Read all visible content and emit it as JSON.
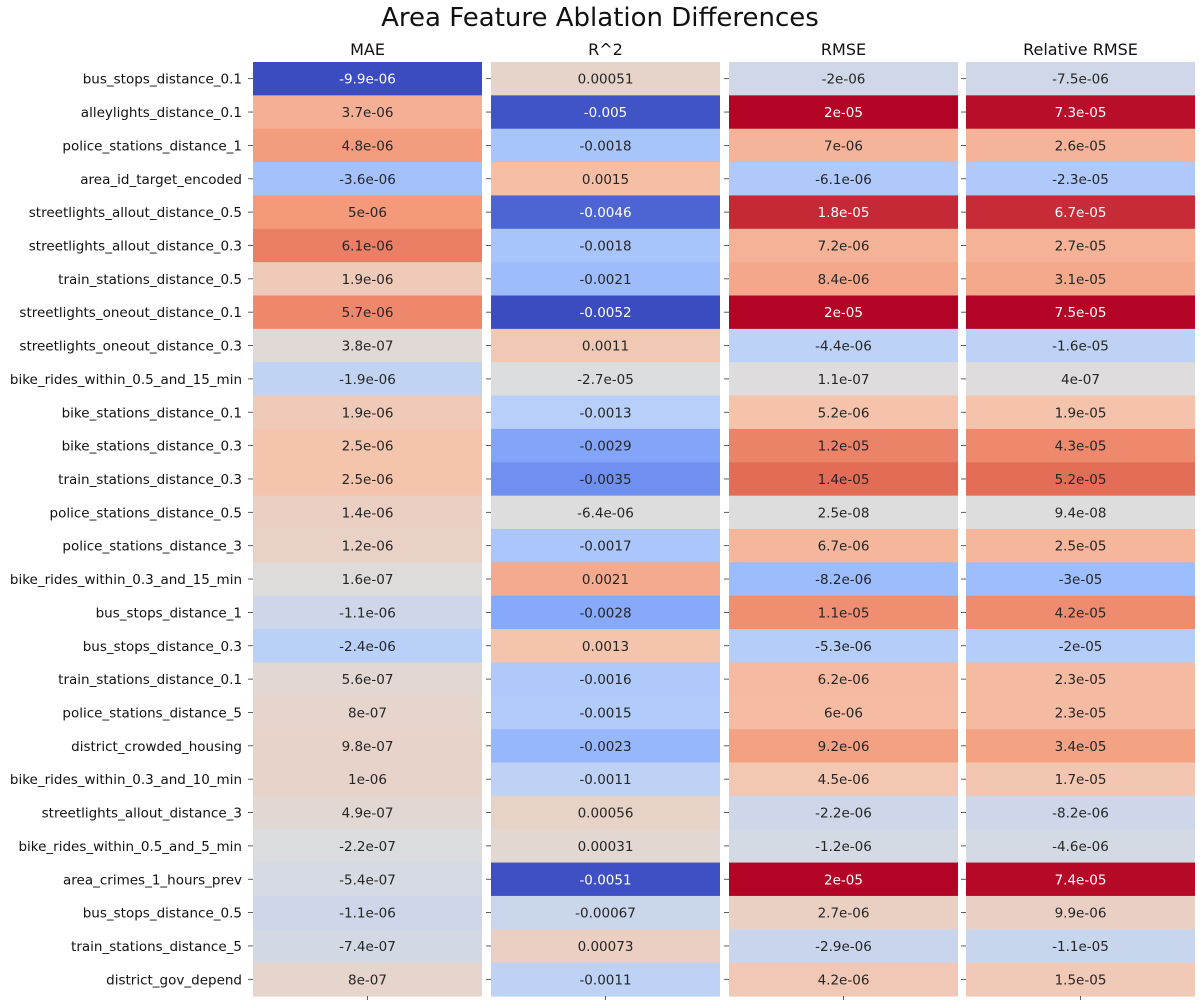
{
  "chart_data": {
    "type": "heatmap",
    "title": "Area Feature Ablation Differences",
    "colormap": "coolwarm",
    "panels": [
      {
        "name": "MAE",
        "vmin": -9.9e-06,
        "vmax": 9.9e-06,
        "labels": [
          "-9.9e-06",
          "3.7e-06",
          "4.8e-06",
          "-3.6e-06",
          "5e-06",
          "6.1e-06",
          "1.9e-06",
          "5.7e-06",
          "3.8e-07",
          "-1.9e-06",
          "1.9e-06",
          "2.5e-06",
          "2.5e-06",
          "1.4e-06",
          "1.2e-06",
          "1.6e-07",
          "-1.1e-06",
          "-2.4e-06",
          "5.6e-07",
          "8e-07",
          "9.8e-07",
          "1e-06",
          "4.9e-07",
          "-2.2e-07",
          "-5.4e-07",
          "-1.1e-06",
          "-7.4e-07",
          "8e-07"
        ],
        "values": [
          -9.9e-06,
          3.7e-06,
          4.8e-06,
          -3.6e-06,
          5e-06,
          6.1e-06,
          1.9e-06,
          5.7e-06,
          3.8e-07,
          -1.9e-06,
          1.9e-06,
          2.5e-06,
          2.5e-06,
          1.4e-06,
          1.2e-06,
          1.6e-07,
          -1.1e-06,
          -2.4e-06,
          5.6e-07,
          8e-07,
          9.8e-07,
          1e-06,
          4.9e-07,
          -2.2e-07,
          -5.4e-07,
          -1.1e-06,
          -7.4e-07,
          8e-07
        ]
      },
      {
        "name": "R^2",
        "vmin": -0.0052,
        "vmax": 0.0052,
        "labels": [
          "0.00051",
          "-0.005",
          "-0.0018",
          "0.0015",
          "-0.0046",
          "-0.0018",
          "-0.0021",
          "-0.0052",
          "0.0011",
          "-2.7e-05",
          "-0.0013",
          "-0.0029",
          "-0.0035",
          "-6.4e-06",
          "-0.0017",
          "0.0021",
          "-0.0028",
          "0.0013",
          "-0.0016",
          "-0.0015",
          "-0.0023",
          "-0.0011",
          "0.00056",
          "0.00031",
          "-0.0051",
          "-0.00067",
          "0.00073",
          "-0.0011"
        ],
        "values": [
          0.00051,
          -0.005,
          -0.0018,
          0.0015,
          -0.0046,
          -0.0018,
          -0.0021,
          -0.0052,
          0.0011,
          -2.7e-05,
          -0.0013,
          -0.0029,
          -0.0035,
          -6.4e-06,
          -0.0017,
          0.0021,
          -0.0028,
          0.0013,
          -0.0016,
          -0.0015,
          -0.0023,
          -0.0011,
          0.00056,
          0.00031,
          -0.0051,
          -0.00067,
          0.00073,
          -0.0011
        ]
      },
      {
        "name": "RMSE",
        "vmin": -2e-05,
        "vmax": 2e-05,
        "labels": [
          "-2e-06",
          "2e-05",
          "7e-06",
          "-6.1e-06",
          "1.8e-05",
          "7.2e-06",
          "8.4e-06",
          "2e-05",
          "-4.4e-06",
          "1.1e-07",
          "5.2e-06",
          "1.2e-05",
          "1.4e-05",
          "2.5e-08",
          "6.7e-06",
          "-8.2e-06",
          "1.1e-05",
          "-5.3e-06",
          "6.2e-06",
          "6e-06",
          "9.2e-06",
          "4.5e-06",
          "-2.2e-06",
          "-1.2e-06",
          "2e-05",
          "2.7e-06",
          "-2.9e-06",
          "4.2e-06"
        ],
        "values": [
          -2e-06,
          2e-05,
          7e-06,
          -6.1e-06,
          1.8e-05,
          7.2e-06,
          8.4e-06,
          2e-05,
          -4.4e-06,
          1.1e-07,
          5.2e-06,
          1.2e-05,
          1.4e-05,
          2.5e-08,
          6.7e-06,
          -8.2e-06,
          1.1e-05,
          -5.3e-06,
          6.2e-06,
          6e-06,
          9.2e-06,
          4.5e-06,
          -2.2e-06,
          -1.2e-06,
          2e-05,
          2.7e-06,
          -2.9e-06,
          4.2e-06
        ]
      },
      {
        "name": "Relative RMSE",
        "vmin": -7.5e-05,
        "vmax": 7.5e-05,
        "labels": [
          "-7.5e-06",
          "7.3e-05",
          "2.6e-05",
          "-2.3e-05",
          "6.7e-05",
          "2.7e-05",
          "3.1e-05",
          "7.5e-05",
          "-1.6e-05",
          "4e-07",
          "1.9e-05",
          "4.3e-05",
          "5.2e-05",
          "9.4e-08",
          "2.5e-05",
          "-3e-05",
          "4.2e-05",
          "-2e-05",
          "2.3e-05",
          "2.3e-05",
          "3.4e-05",
          "1.7e-05",
          "-8.2e-06",
          "-4.6e-06",
          "7.4e-05",
          "9.9e-06",
          "-1.1e-05",
          "1.5e-05"
        ],
        "values": [
          -7.5e-06,
          7.3e-05,
          2.6e-05,
          -2.3e-05,
          6.7e-05,
          2.7e-05,
          3.1e-05,
          7.5e-05,
          -1.6e-05,
          4e-07,
          1.9e-05,
          4.3e-05,
          5.2e-05,
          9.4e-08,
          2.5e-05,
          -3e-05,
          4.2e-05,
          -2e-05,
          2.3e-05,
          2.3e-05,
          3.4e-05,
          1.7e-05,
          -8.2e-06,
          -4.6e-06,
          7.4e-05,
          9.9e-06,
          -1.1e-05,
          1.5e-05
        ]
      }
    ],
    "rows": [
      "bus_stops_distance_0.1",
      "alleylights_distance_0.1",
      "police_stations_distance_1",
      "area_id_target_encoded",
      "streetlights_allout_distance_0.5",
      "streetlights_allout_distance_0.3",
      "train_stations_distance_0.5",
      "streetlights_oneout_distance_0.1",
      "streetlights_oneout_distance_0.3",
      "bike_rides_within_0.5_and_15_min",
      "bike_stations_distance_0.1",
      "bike_stations_distance_0.3",
      "train_stations_distance_0.3",
      "police_stations_distance_0.5",
      "police_stations_distance_3",
      "bike_rides_within_0.3_and_15_min",
      "bus_stops_distance_1",
      "bus_stops_distance_0.3",
      "train_stations_distance_0.1",
      "police_stations_distance_5",
      "district_crowded_housing",
      "bike_rides_within_0.3_and_10_min",
      "streetlights_allout_distance_3",
      "bike_rides_within_0.5_and_5_min",
      "area_crimes_1_hours_prev",
      "bus_stops_distance_0.5",
      "train_stations_distance_5",
      "district_gov_depend"
    ],
    "grid": false,
    "legend": "none"
  }
}
